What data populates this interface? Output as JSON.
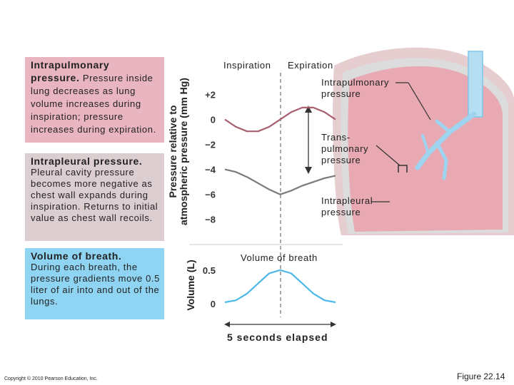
{
  "panels": [
    {
      "heading": "Intrapulmonary pressure.",
      "body": "Pressure inside lung decreases as lung volume increases during inspiration; pressure increases during expiration."
    },
    {
      "heading": "Intrapleural pressure.",
      "body": "Pleural cavity pressure becomes more negative as chest wall expands during inspiration. Returns to initial value as chest wall recoils."
    },
    {
      "heading": "Volume of breath.",
      "body": "During each breath, the pressure gradients move 0.5 liter of air into and out of the lungs."
    }
  ],
  "phase_labels": [
    "Inspiration",
    "Expiration"
  ],
  "callouts": [
    "Intrapulmonary pressure",
    "Trans-pulmonary pressure",
    "Intrapleural pressure"
  ],
  "time_label": "5 seconds elapsed",
  "copyright": "Copyright © 2010 Pearson Education, Inc.",
  "figure": "Figure 22.14",
  "chart_data": [
    {
      "type": "line",
      "ylabel": [
        "Pressure relative to",
        "atmospheric pressure (mm Hg)"
      ],
      "x": [
        0,
        0.5,
        1,
        1.5,
        2,
        2.5,
        3,
        3.5,
        4,
        4.5,
        5
      ],
      "xlim": [
        0,
        5
      ],
      "ylim": [
        -8.7,
        3
      ],
      "yticks": [
        {
          "value": 2,
          "label": "+2"
        },
        0,
        {
          "value": -2,
          "label": "−2"
        },
        {
          "value": -4,
          "label": "−4"
        },
        {
          "value": -6,
          "label": "−6"
        },
        {
          "value": -8,
          "label": "−8"
        }
      ],
      "grid": false,
      "series": [
        {
          "name": "Intrapulmonary pressure",
          "color": "#a8606f",
          "values": [
            0,
            -0.59,
            -0.95,
            -0.95,
            -0.59,
            0,
            0.59,
            0.95,
            0.95,
            0.59,
            0
          ]
        },
        {
          "name": "Intrapleural pressure",
          "color": "#7a7a7a",
          "values": [
            -4,
            -4.2,
            -4.6,
            -5.1,
            -5.6,
            -6,
            -5.7,
            -5.3,
            -5,
            -4.7,
            -4.5
          ]
        }
      ]
    },
    {
      "type": "line",
      "title": "Volume of breath",
      "ylabel": [
        "Volume (L)"
      ],
      "x": [
        0,
        0.5,
        1,
        1.5,
        2,
        2.5,
        3,
        3.5,
        4,
        4.5,
        5
      ],
      "xlim": [
        0,
        5
      ],
      "ylim": [
        -0.15,
        0.7
      ],
      "yticks": [
        0.5,
        0
      ],
      "grid": false,
      "series": [
        {
          "name": "Volume of breath",
          "color": "#4db8e8",
          "values": [
            0.02,
            0.05,
            0.15,
            0.3,
            0.45,
            0.5,
            0.45,
            0.3,
            0.15,
            0.05,
            0.02
          ]
        }
      ]
    }
  ]
}
